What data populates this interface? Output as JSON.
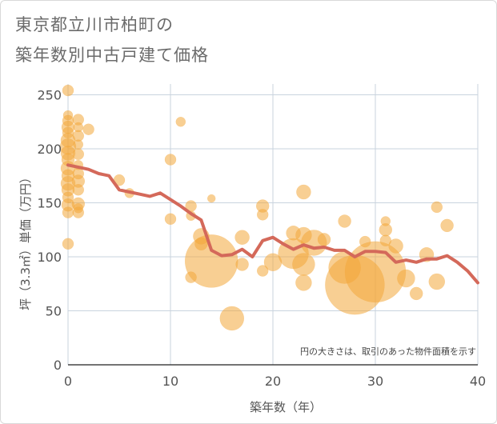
{
  "title_line1": "東京都立川市柏町の",
  "title_line2": "築年数別中古戸建て価格",
  "chart_data": {
    "type": "scatter",
    "title": "東京都立川市柏町の 築年数別中古戸建て価格",
    "xlabel": "築年数（年）",
    "ylabel": "坪（3.3㎡）単価（万円）",
    "xlim": [
      0,
      40
    ],
    "ylim": [
      0,
      260
    ],
    "xticks": [
      0,
      10,
      20,
      30,
      40
    ],
    "yticks": [
      0,
      50,
      100,
      150,
      200,
      250
    ],
    "grid": true,
    "note": "円の大きさは、取引のあった物件面積を示す",
    "colors": {
      "bubble": "#f3a73a",
      "line": "#d4695a"
    },
    "series": [
      {
        "type": "bubble",
        "points": [
          {
            "x": 0,
            "y": 254,
            "s": 7
          },
          {
            "x": 0,
            "y": 231,
            "s": 6
          },
          {
            "x": 0,
            "y": 226,
            "s": 7
          },
          {
            "x": 0,
            "y": 220,
            "s": 8
          },
          {
            "x": 0,
            "y": 215,
            "s": 7
          },
          {
            "x": 0,
            "y": 208,
            "s": 9
          },
          {
            "x": 0,
            "y": 202,
            "s": 10
          },
          {
            "x": 0,
            "y": 196,
            "s": 9
          },
          {
            "x": 0,
            "y": 190,
            "s": 8
          },
          {
            "x": 0,
            "y": 182,
            "s": 9
          },
          {
            "x": 0,
            "y": 175,
            "s": 8
          },
          {
            "x": 0,
            "y": 168,
            "s": 9
          },
          {
            "x": 0,
            "y": 162,
            "s": 8
          },
          {
            "x": 0,
            "y": 155,
            "s": 7
          },
          {
            "x": 0,
            "y": 148,
            "s": 8
          },
          {
            "x": 0,
            "y": 141,
            "s": 7
          },
          {
            "x": 0,
            "y": 112,
            "s": 7
          },
          {
            "x": 1,
            "y": 227,
            "s": 7
          },
          {
            "x": 1,
            "y": 220,
            "s": 6
          },
          {
            "x": 1,
            "y": 212,
            "s": 7
          },
          {
            "x": 1,
            "y": 204,
            "s": 6
          },
          {
            "x": 1,
            "y": 195,
            "s": 7
          },
          {
            "x": 1,
            "y": 185,
            "s": 6
          },
          {
            "x": 1,
            "y": 177,
            "s": 7
          },
          {
            "x": 1,
            "y": 170,
            "s": 8
          },
          {
            "x": 1,
            "y": 162,
            "s": 7
          },
          {
            "x": 1,
            "y": 149,
            "s": 8
          },
          {
            "x": 1,
            "y": 145,
            "s": 6
          },
          {
            "x": 1,
            "y": 141,
            "s": 7
          },
          {
            "x": 2,
            "y": 218,
            "s": 7
          },
          {
            "x": 5,
            "y": 171,
            "s": 7
          },
          {
            "x": 6,
            "y": 159,
            "s": 6
          },
          {
            "x": 10,
            "y": 190,
            "s": 7
          },
          {
            "x": 10,
            "y": 135,
            "s": 7
          },
          {
            "x": 11,
            "y": 225,
            "s": 6
          },
          {
            "x": 12,
            "y": 147,
            "s": 7
          },
          {
            "x": 12,
            "y": 138,
            "s": 6
          },
          {
            "x": 12,
            "y": 81,
            "s": 7
          },
          {
            "x": 13,
            "y": 119,
            "s": 10
          },
          {
            "x": 13,
            "y": 112,
            "s": 8
          },
          {
            "x": 14,
            "y": 154,
            "s": 5
          },
          {
            "x": 14,
            "y": 96,
            "s": 33
          },
          {
            "x": 16,
            "y": 43,
            "s": 15
          },
          {
            "x": 17,
            "y": 118,
            "s": 9
          },
          {
            "x": 17,
            "y": 93,
            "s": 8
          },
          {
            "x": 19,
            "y": 147,
            "s": 8
          },
          {
            "x": 19,
            "y": 139,
            "s": 7
          },
          {
            "x": 19,
            "y": 87,
            "s": 7
          },
          {
            "x": 20,
            "y": 95,
            "s": 11
          },
          {
            "x": 22,
            "y": 122,
            "s": 9
          },
          {
            "x": 22,
            "y": 103,
            "s": 19
          },
          {
            "x": 23,
            "y": 160,
            "s": 9
          },
          {
            "x": 23,
            "y": 120,
            "s": 10
          },
          {
            "x": 23,
            "y": 93,
            "s": 14
          },
          {
            "x": 23,
            "y": 76,
            "s": 10
          },
          {
            "x": 24,
            "y": 113,
            "s": 16
          },
          {
            "x": 25,
            "y": 116,
            "s": 8
          },
          {
            "x": 27,
            "y": 133,
            "s": 8
          },
          {
            "x": 27,
            "y": 90,
            "s": 20
          },
          {
            "x": 28,
            "y": 74,
            "s": 37
          },
          {
            "x": 29,
            "y": 114,
            "s": 7
          },
          {
            "x": 30,
            "y": 86,
            "s": 38
          },
          {
            "x": 31,
            "y": 133,
            "s": 6
          },
          {
            "x": 31,
            "y": 125,
            "s": 8
          },
          {
            "x": 31,
            "y": 115,
            "s": 7
          },
          {
            "x": 32,
            "y": 110,
            "s": 9
          },
          {
            "x": 33,
            "y": 80,
            "s": 11
          },
          {
            "x": 34,
            "y": 66,
            "s": 8
          },
          {
            "x": 35,
            "y": 102,
            "s": 9
          },
          {
            "x": 36,
            "y": 146,
            "s": 7
          },
          {
            "x": 36,
            "y": 77,
            "s": 10
          },
          {
            "x": 37,
            "y": 129,
            "s": 8
          }
        ]
      },
      {
        "type": "line",
        "points": [
          {
            "x": 0,
            "y": 185
          },
          {
            "x": 1,
            "y": 183
          },
          {
            "x": 2,
            "y": 181
          },
          {
            "x": 3,
            "y": 177
          },
          {
            "x": 4,
            "y": 175
          },
          {
            "x": 5,
            "y": 162
          },
          {
            "x": 6,
            "y": 160
          },
          {
            "x": 7,
            "y": 158
          },
          {
            "x": 8,
            "y": 156
          },
          {
            "x": 9,
            "y": 159
          },
          {
            "x": 10,
            "y": 153
          },
          {
            "x": 11,
            "y": 147
          },
          {
            "x": 12,
            "y": 140
          },
          {
            "x": 13,
            "y": 134
          },
          {
            "x": 14,
            "y": 106
          },
          {
            "x": 15,
            "y": 101
          },
          {
            "x": 16,
            "y": 102
          },
          {
            "x": 17,
            "y": 107
          },
          {
            "x": 18,
            "y": 100
          },
          {
            "x": 19,
            "y": 115
          },
          {
            "x": 20,
            "y": 118
          },
          {
            "x": 21,
            "y": 112
          },
          {
            "x": 22,
            "y": 107
          },
          {
            "x": 23,
            "y": 111
          },
          {
            "x": 24,
            "y": 108
          },
          {
            "x": 25,
            "y": 109
          },
          {
            "x": 26,
            "y": 106
          },
          {
            "x": 27,
            "y": 106
          },
          {
            "x": 28,
            "y": 100
          },
          {
            "x": 29,
            "y": 105
          },
          {
            "x": 30,
            "y": 105
          },
          {
            "x": 31,
            "y": 104
          },
          {
            "x": 32,
            "y": 95
          },
          {
            "x": 33,
            "y": 97
          },
          {
            "x": 34,
            "y": 95
          },
          {
            "x": 35,
            "y": 98
          },
          {
            "x": 36,
            "y": 98
          },
          {
            "x": 37,
            "y": 101
          },
          {
            "x": 38,
            "y": 95
          },
          {
            "x": 39,
            "y": 87
          },
          {
            "x": 40,
            "y": 76
          }
        ]
      }
    ]
  }
}
